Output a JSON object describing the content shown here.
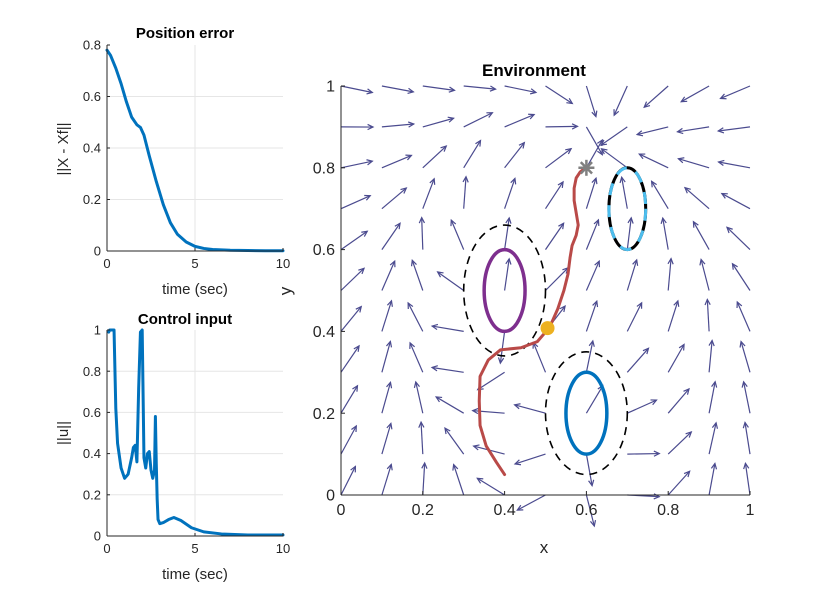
{
  "chart_data": [
    {
      "type": "line",
      "title": "Position error",
      "xlabel": "time (sec)",
      "ylabel": "||X - Xf||",
      "xlim": [
        0,
        10
      ],
      "ylim": [
        0,
        0.8
      ],
      "xticks": [
        "0",
        "5",
        "10"
      ],
      "yticks": [
        "0",
        "0.2",
        "0.4",
        "0.6",
        "0.8"
      ],
      "grid": true,
      "color": "#0072BD",
      "series": [
        {
          "name": "position error",
          "x": [
            0,
            0.2,
            0.5,
            0.8,
            1.1,
            1.4,
            1.7,
            1.9,
            2.1,
            2.4,
            2.8,
            3.2,
            3.6,
            4.0,
            4.5,
            5.0,
            5.5,
            6.0,
            7.0,
            8.0,
            9.0,
            10.0
          ],
          "y": [
            0.78,
            0.76,
            0.71,
            0.65,
            0.58,
            0.52,
            0.49,
            0.48,
            0.45,
            0.37,
            0.27,
            0.18,
            0.11,
            0.065,
            0.035,
            0.018,
            0.01,
            0.006,
            0.003,
            0.002,
            0.001,
            0.001
          ]
        }
      ]
    },
    {
      "type": "line",
      "title": "Control input",
      "xlabel": "time (sec)",
      "ylabel": "||u||",
      "xlim": [
        0,
        10
      ],
      "ylim": [
        0,
        1
      ],
      "xticks": [
        "0",
        "5",
        "10"
      ],
      "yticks": [
        "0",
        "0.2",
        "0.4",
        "0.6",
        "0.8",
        "1"
      ],
      "grid": true,
      "color": "#0072BD",
      "series": [
        {
          "name": "control norm",
          "x": [
            0.1,
            0.15,
            0.4,
            0.5,
            0.6,
            0.8,
            1.0,
            1.2,
            1.4,
            1.5,
            1.6,
            1.7,
            1.8,
            1.9,
            2.0,
            2.1,
            2.2,
            2.3,
            2.4,
            2.5,
            2.6,
            2.7,
            2.75,
            2.8,
            2.85,
            2.9,
            3.0,
            3.2,
            3.5,
            3.8,
            4.2,
            4.8,
            5.5,
            6.5,
            8.0,
            10.0
          ],
          "y": [
            0.99,
            1.0,
            1.0,
            0.62,
            0.45,
            0.33,
            0.28,
            0.3,
            0.38,
            0.43,
            0.44,
            0.36,
            0.72,
            0.99,
            1.0,
            0.38,
            0.33,
            0.4,
            0.41,
            0.32,
            0.28,
            0.32,
            0.58,
            0.35,
            0.18,
            0.08,
            0.06,
            0.065,
            0.08,
            0.09,
            0.075,
            0.04,
            0.02,
            0.01,
            0.005,
            0.005
          ]
        }
      ]
    },
    {
      "type": "line",
      "title": "Environment",
      "xlabel": "x",
      "ylabel": "y",
      "xlim": [
        0,
        1
      ],
      "ylim": [
        0,
        1
      ],
      "xticks": [
        "0",
        "0.2",
        "0.4",
        "0.6",
        "0.8",
        "1"
      ],
      "yticks": [
        "0",
        "0.2",
        "0.4",
        "0.6",
        "0.8",
        "1"
      ],
      "grid": false,
      "series": [
        {
          "name": "trajectory",
          "color": "#B94A48",
          "x": [
            0.4,
            0.38,
            0.355,
            0.34,
            0.338,
            0.34,
            0.36,
            0.39,
            0.44,
            0.48,
            0.51,
            0.53,
            0.545,
            0.555,
            0.56,
            0.565,
            0.575,
            0.58,
            0.575,
            0.57,
            0.57,
            0.575,
            0.585,
            0.595,
            0.6
          ],
          "y": [
            0.05,
            0.08,
            0.12,
            0.17,
            0.23,
            0.29,
            0.33,
            0.355,
            0.36,
            0.375,
            0.41,
            0.455,
            0.5,
            0.54,
            0.58,
            0.61,
            0.635,
            0.66,
            0.69,
            0.72,
            0.75,
            0.775,
            0.79,
            0.798,
            0.8
          ]
        }
      ],
      "obstacles": [
        {
          "name": "purple obstacle",
          "center": [
            0.4,
            0.5
          ],
          "radii": [
            0.05,
            0.1
          ],
          "color": "#7E2F8E",
          "safety_radii": [
            0.1,
            0.16
          ]
        },
        {
          "name": "blue obstacle",
          "center": [
            0.6,
            0.2
          ],
          "radii": [
            0.05,
            0.1
          ],
          "color": "#0072BD",
          "safety_radii": [
            0.1,
            0.15
          ]
        },
        {
          "name": "target region",
          "center": [
            0.7,
            0.7
          ],
          "radii": [
            0.045,
            0.1
          ],
          "color": "#4DBEEE"
        }
      ],
      "markers": [
        {
          "name": "goal",
          "x": 0.6,
          "y": 0.8,
          "symbol": "*",
          "color": "#808080"
        },
        {
          "name": "waypoint",
          "x": 0.505,
          "y": 0.408,
          "symbol": "o",
          "color": "#EDB120"
        }
      ],
      "vector_field": {
        "grid_x": [
          0,
          0.1,
          0.2,
          0.3,
          0.4,
          0.5,
          0.6,
          0.7,
          0.8,
          0.9,
          1.0
        ],
        "grid_y": [
          0,
          0.1,
          0.2,
          0.3,
          0.4,
          0.5,
          0.6,
          0.7,
          0.8,
          0.9,
          1.0
        ],
        "color": "#4B4B8F"
      }
    }
  ]
}
